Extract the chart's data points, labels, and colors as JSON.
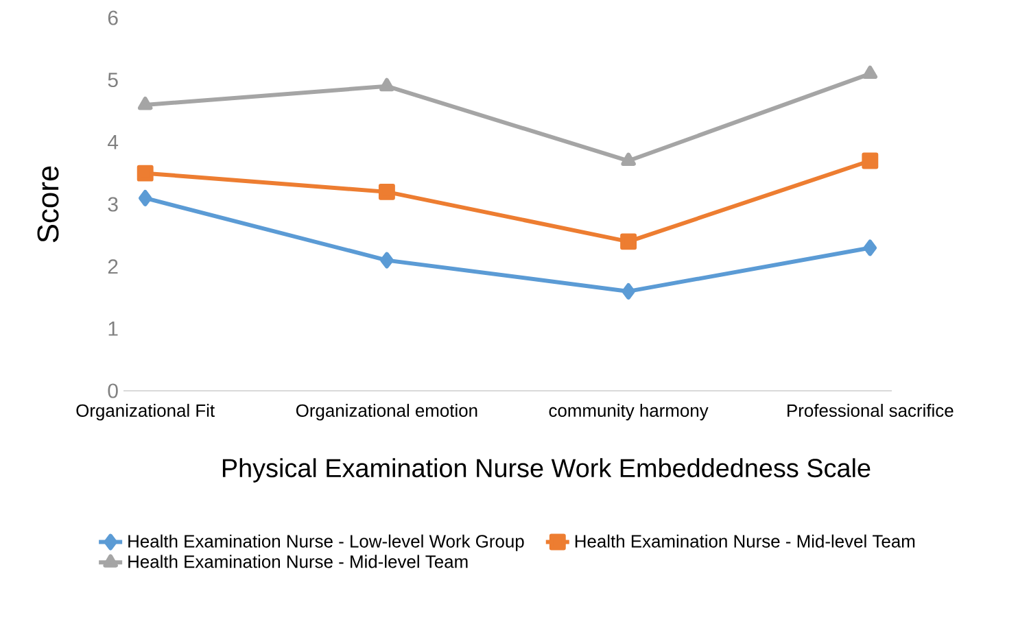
{
  "chart_data": {
    "type": "line",
    "xlabel": "Physical Examination Nurse Work Embeddedness Scale",
    "ylabel": "Score",
    "categories": [
      "Organizational Fit",
      "Organizational emotion",
      "community harmony",
      "Professional sacrifice"
    ],
    "series": [
      {
        "name": "Health Examination Nurse - Low-level Work Group",
        "color": "#5b9bd5",
        "marker": "diamond",
        "values": [
          3.1,
          2.1,
          1.6,
          2.3
        ]
      },
      {
        "name": "Health Examination Nurse - Mid-level Team",
        "color": "#ed7d31",
        "marker": "square",
        "values": [
          3.5,
          3.2,
          2.4,
          3.7
        ]
      },
      {
        "name": "Health Examination Nurse - Mid-level Team",
        "color": "#a5a5a5",
        "marker": "triangle",
        "values": [
          4.6,
          4.9,
          3.7,
          5.1
        ]
      }
    ],
    "ylim": [
      0,
      6
    ],
    "yticks": [
      0,
      1,
      2,
      3,
      4,
      5,
      6
    ],
    "legend": "bottom"
  }
}
